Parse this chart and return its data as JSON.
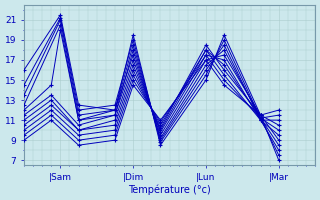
{
  "xlabel": "Température (°c)",
  "bg_color": "#cce8ec",
  "grid_color": "#aacccc",
  "line_color": "#0000bb",
  "day_labels": [
    "|Sam",
    "|Dim",
    "|Lun",
    "|Mar"
  ],
  "day_positions": [
    24,
    72,
    120,
    168
  ],
  "xlim": [
    0,
    192
  ],
  "ylim": [
    6.5,
    22.5
  ],
  "yticks": [
    7,
    9,
    11,
    13,
    15,
    17,
    19,
    21
  ],
  "forecasts": [
    {
      "x": [
        0,
        24,
        36,
        60,
        72,
        90,
        120,
        132,
        156,
        168
      ],
      "y": [
        16.0,
        21.5,
        12.5,
        12.0,
        19.5,
        8.5,
        15.0,
        19.5,
        11.5,
        7.0
      ]
    },
    {
      "x": [
        0,
        24,
        36,
        60,
        72,
        90,
        120,
        132,
        156,
        168
      ],
      "y": [
        14.5,
        21.2,
        12.0,
        12.5,
        19.0,
        8.8,
        15.5,
        19.0,
        11.2,
        7.5
      ]
    },
    {
      "x": [
        0,
        24,
        36,
        60,
        72,
        90,
        120,
        132,
        156,
        168
      ],
      "y": [
        13.5,
        21.0,
        11.5,
        12.0,
        18.5,
        9.0,
        16.0,
        18.5,
        11.0,
        8.0
      ]
    },
    {
      "x": [
        0,
        24,
        36,
        60,
        72,
        90,
        120,
        132,
        156,
        168
      ],
      "y": [
        12.5,
        20.5,
        11.0,
        11.5,
        18.0,
        9.2,
        16.5,
        18.0,
        11.2,
        8.5
      ]
    },
    {
      "x": [
        0,
        18,
        24,
        36,
        60,
        72,
        90,
        120,
        132,
        156,
        168
      ],
      "y": [
        12.0,
        14.5,
        20.0,
        11.0,
        12.0,
        17.5,
        9.5,
        17.0,
        17.5,
        11.5,
        9.0
      ]
    },
    {
      "x": [
        0,
        18,
        36,
        60,
        72,
        90,
        120,
        132,
        156,
        168
      ],
      "y": [
        11.5,
        13.5,
        10.5,
        11.5,
        17.0,
        9.8,
        17.5,
        17.0,
        11.0,
        9.5
      ]
    },
    {
      "x": [
        0,
        18,
        36,
        60,
        72,
        90,
        120,
        132,
        156,
        168
      ],
      "y": [
        11.0,
        13.0,
        10.0,
        11.0,
        16.5,
        10.0,
        18.0,
        16.5,
        11.2,
        10.0
      ]
    },
    {
      "x": [
        0,
        18,
        36,
        60,
        72,
        90,
        120,
        132,
        156,
        168
      ],
      "y": [
        10.5,
        12.5,
        10.0,
        10.5,
        16.0,
        10.2,
        18.5,
        16.0,
        11.5,
        10.5
      ]
    },
    {
      "x": [
        0,
        18,
        36,
        60,
        72,
        90,
        120,
        132,
        156,
        168
      ],
      "y": [
        10.0,
        12.0,
        9.5,
        10.0,
        15.5,
        10.5,
        18.0,
        15.5,
        11.0,
        11.0
      ]
    },
    {
      "x": [
        0,
        18,
        36,
        60,
        72,
        90,
        120,
        132,
        156,
        168
      ],
      "y": [
        9.5,
        11.5,
        9.0,
        9.5,
        15.0,
        10.8,
        17.5,
        15.0,
        11.2,
        11.5
      ]
    },
    {
      "x": [
        0,
        18,
        36,
        60,
        72,
        90,
        120,
        132,
        156,
        168
      ],
      "y": [
        9.0,
        11.0,
        8.5,
        9.0,
        14.5,
        11.0,
        17.0,
        14.5,
        11.5,
        12.0
      ]
    }
  ]
}
